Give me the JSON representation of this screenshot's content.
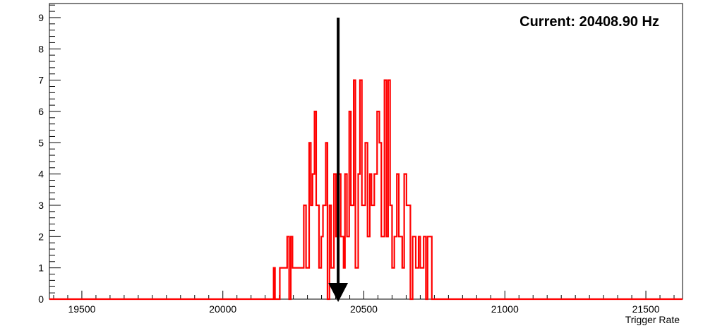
{
  "chart_data": {
    "type": "histogram",
    "xlabel": "Trigger Rate",
    "ylabel": "",
    "xlim": [
      19385,
      21630
    ],
    "ylim": [
      0,
      9.45
    ],
    "x_ticks": [
      19500,
      20000,
      20500,
      21000,
      21500
    ],
    "y_ticks": [
      0,
      1,
      2,
      3,
      4,
      5,
      6,
      7,
      8,
      9
    ],
    "annotation": {
      "text": "Current: 20408.90 Hz",
      "arrow_x": 20408.9
    },
    "series": [
      {
        "color": "#ff0000",
        "steps": [
          [
            19385,
            0
          ],
          [
            20180,
            1
          ],
          [
            20185,
            0
          ],
          [
            20202,
            1
          ],
          [
            20228,
            2
          ],
          [
            20235,
            0
          ],
          [
            20241,
            2
          ],
          [
            20247,
            1
          ],
          [
            20287,
            3
          ],
          [
            20295,
            1
          ],
          [
            20306,
            5
          ],
          [
            20312,
            3
          ],
          [
            20318,
            4
          ],
          [
            20325,
            6
          ],
          [
            20331,
            3
          ],
          [
            20341,
            1
          ],
          [
            20349,
            2
          ],
          [
            20355,
            3
          ],
          [
            20365,
            5
          ],
          [
            20371,
            0
          ],
          [
            20378,
            3
          ],
          [
            20384,
            1
          ],
          [
            20394,
            4
          ],
          [
            20401,
            2
          ],
          [
            20408,
            4
          ],
          [
            20418,
            2
          ],
          [
            20428,
            1
          ],
          [
            20433,
            4
          ],
          [
            20440,
            2
          ],
          [
            20448,
            6
          ],
          [
            20454,
            3
          ],
          [
            20464,
            7
          ],
          [
            20470,
            1
          ],
          [
            20480,
            4
          ],
          [
            20486,
            7
          ],
          [
            20493,
            3
          ],
          [
            20505,
            5
          ],
          [
            20513,
            2
          ],
          [
            20521,
            4
          ],
          [
            20527,
            3
          ],
          [
            20537,
            4
          ],
          [
            20547,
            6
          ],
          [
            20555,
            5
          ],
          [
            20562,
            2
          ],
          [
            20573,
            7
          ],
          [
            20580,
            2
          ],
          [
            20586,
            7
          ],
          [
            20593,
            3
          ],
          [
            20600,
            1
          ],
          [
            20608,
            2
          ],
          [
            20617,
            4
          ],
          [
            20624,
            2
          ],
          [
            20636,
            1
          ],
          [
            20643,
            4
          ],
          [
            20651,
            3
          ],
          [
            20665,
            0
          ],
          [
            20673,
            2
          ],
          [
            20684,
            1
          ],
          [
            20694,
            2
          ],
          [
            20700,
            1
          ],
          [
            20712,
            2
          ],
          [
            20720,
            0
          ],
          [
            20726,
            2
          ],
          [
            20741,
            0
          ]
        ]
      }
    ]
  }
}
